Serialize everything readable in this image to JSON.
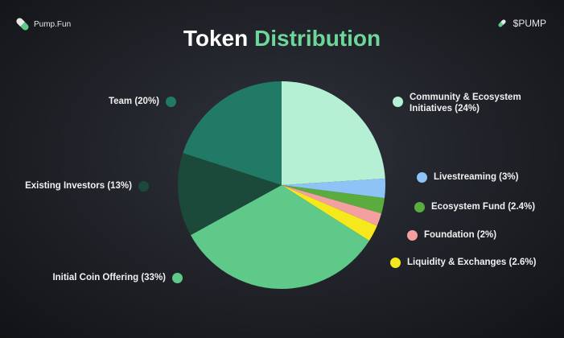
{
  "brand": {
    "name": "Pump.Fun",
    "ticker": "$PUMP"
  },
  "title": {
    "part1": "Token",
    "part2": "Distribution"
  },
  "chart_data": {
    "type": "pie",
    "title": "Token Distribution",
    "start": "top",
    "direction": "clockwise",
    "slices": [
      {
        "label": "Community & Ecosystem Initiatives (24%)",
        "value": 24,
        "color": "#b5f0d4"
      },
      {
        "label": "Livestreaming (3%)",
        "value": 3,
        "color": "#8ec3f5"
      },
      {
        "label": "Ecosystem Fund (2.4%)",
        "value": 2.4,
        "color": "#5aac3e"
      },
      {
        "label": "Foundation (2%)",
        "value": 2,
        "color": "#f4a0a0"
      },
      {
        "label": "Liquidity & Exchanges (2.6%)",
        "value": 2.6,
        "color": "#f5e81c"
      },
      {
        "label": "Initial Coin Offering (33%)",
        "value": 33,
        "color": "#5fc98a"
      },
      {
        "label": "Existing Investors (13%)",
        "value": 13,
        "color": "#1b4a3b"
      },
      {
        "label": "Team (20%)",
        "value": 20,
        "color": "#217a66"
      }
    ]
  }
}
